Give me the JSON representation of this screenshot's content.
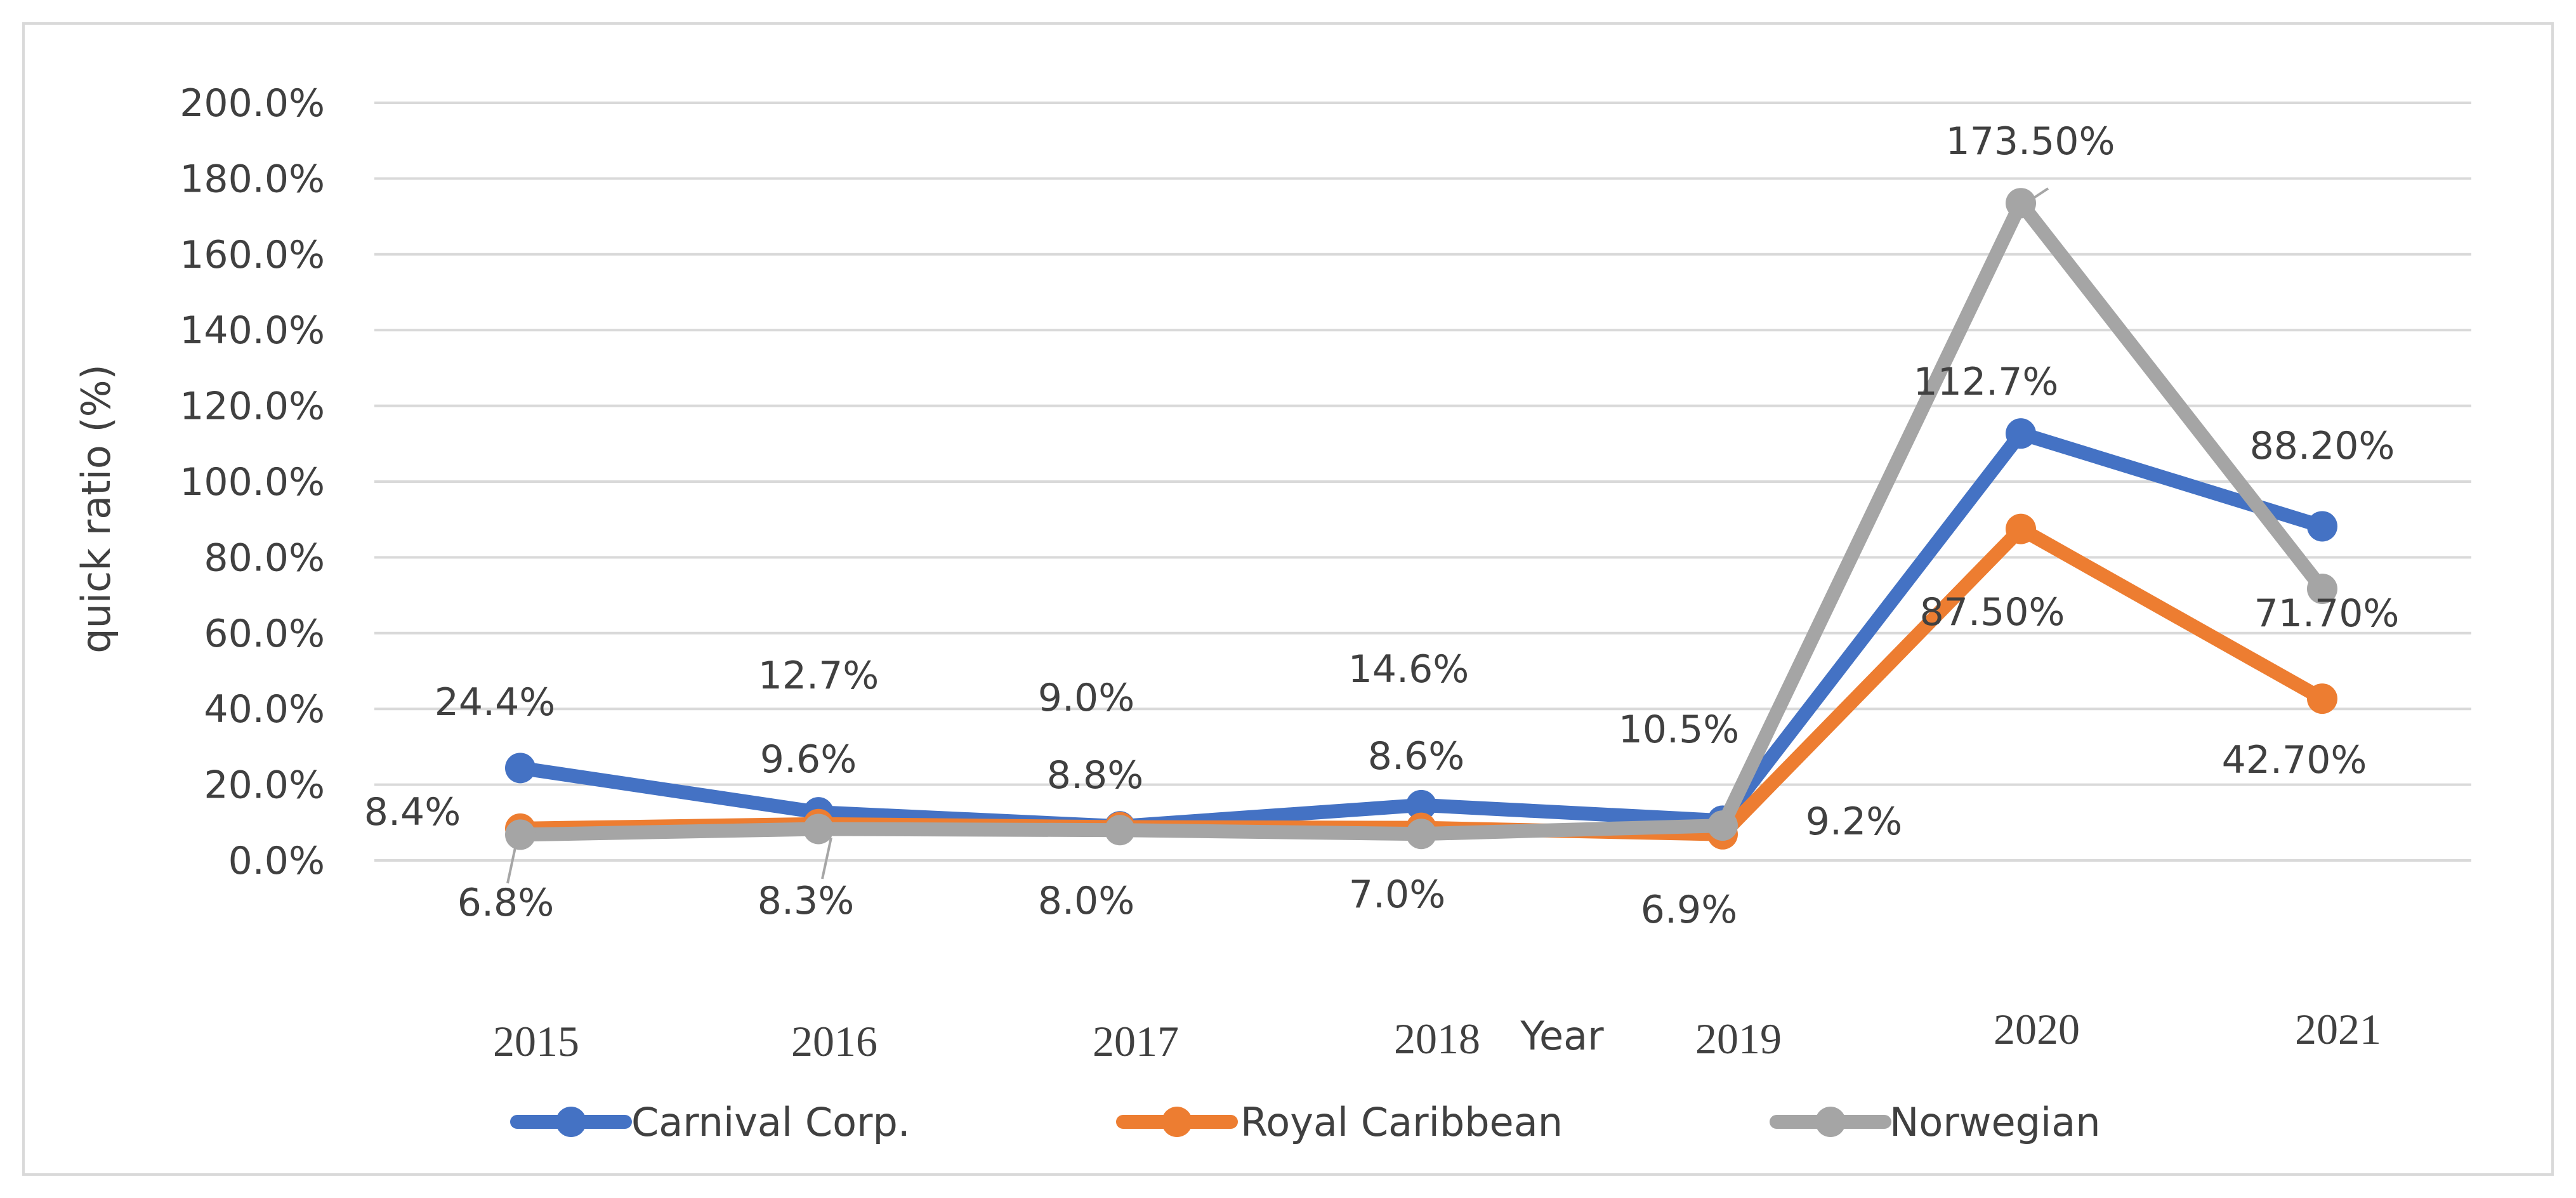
{
  "chart_data": {
    "type": "line",
    "title": "",
    "xlabel": "Year",
    "ylabel": "quick ratio (%)",
    "categories": [
      "2015",
      "2016",
      "2017",
      "2018",
      "2019",
      "2020",
      "2021"
    ],
    "ylim": [
      0,
      200
    ],
    "yticks": [
      "0.0%",
      "20.0%",
      "40.0%",
      "60.0%",
      "80.0%",
      "100.0%",
      "120.0%",
      "140.0%",
      "160.0%",
      "180.0%",
      "200.0%"
    ],
    "grid": true,
    "legend_position": "bottom",
    "series": [
      {
        "name": "Carnival Corp.",
        "color": "#4472C4",
        "values": [
          24.4,
          12.7,
          9.0,
          14.6,
          10.5,
          112.7,
          88.2
        ],
        "labels": [
          "24.4%",
          "12.7%",
          "9.0%",
          "14.6%",
          "10.5%",
          "112.7%",
          "88.20%"
        ]
      },
      {
        "name": "Royal Caribbean",
        "color": "#ED7D31",
        "values": [
          8.4,
          9.6,
          8.8,
          8.6,
          6.9,
          87.5,
          42.7
        ],
        "labels": [
          "8.4%",
          "9.6%",
          "8.8%",
          "8.6%",
          "6.9%",
          "87.50%",
          "42.70%"
        ]
      },
      {
        "name": "Norwegian",
        "color": "#A5A5A5",
        "values": [
          6.8,
          8.3,
          8.0,
          7.0,
          9.2,
          173.5,
          71.7
        ],
        "labels": [
          "6.8%",
          "8.3%",
          "8.0%",
          "7.0%",
          "9.2%",
          "173.50%",
          "71.70%"
        ]
      }
    ]
  },
  "colors": {
    "gridline": "#D9D9D9",
    "frame": "#D9D9D9",
    "text": "#404040",
    "leader": "#A6A6A6"
  }
}
